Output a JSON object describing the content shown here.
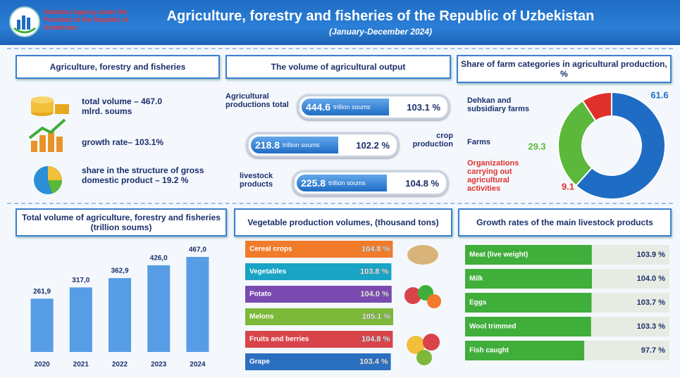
{
  "header": {
    "agency": "Statistics Agency under the President of the Republic of Uzbekistan",
    "title": "Agriculture, forestry and fisheries of the Republic of Uzbekistan",
    "subtitle": "(January-December 2024)"
  },
  "summary": {
    "title": "Agriculture, forestry and fisheries",
    "items": [
      "total volume – 467.0 mlrd. soums",
      "growth rate– 103.1%",
      "share in the structure of gross domestic product – 19.2 %"
    ]
  },
  "output": {
    "title": "The volume of agricultural output",
    "rows": [
      {
        "label": "Agricultural productions total",
        "value": "444.6",
        "unit": "trillion soums",
        "growth": "103.1 %"
      },
      {
        "label": "crop production",
        "value": "218.8",
        "unit": "trillion soums",
        "growth": "102.2 %"
      },
      {
        "label": "livestock products",
        "value": "225.8",
        "unit": "trillion soums",
        "growth": "104.8 %"
      }
    ]
  },
  "chart_data": [
    {
      "type": "pie",
      "title": "Share of farm categories in agricultural production, %",
      "categories": [
        "Dehkan and subsidiary farms",
        "Farms",
        "Organizations carrying out agricultural activities"
      ],
      "values": [
        61.6,
        29.3,
        9.1
      ],
      "colors": [
        "#1f6cc4",
        "#5cb83a",
        "#e0302c"
      ]
    },
    {
      "type": "bar",
      "title": "Total volume of agriculture, forestry and fisheries (trillion soums)",
      "categories": [
        "2020",
        "2021",
        "2022",
        "2023",
        "2024"
      ],
      "values": [
        261.9,
        317.0,
        362.9,
        426.0,
        467.0
      ],
      "value_labels": [
        "261,9",
        "317,0",
        "362,9",
        "426,0",
        "467,0"
      ],
      "color": "#3a8de0"
    },
    {
      "type": "bar",
      "horizontal": true,
      "title": "Vegetable production volumes, (thousand tons)",
      "categories": [
        "Cereal crops",
        "Vegetables",
        "Potato",
        "Melons",
        "Fruits and berries",
        "Grape"
      ],
      "values": [
        104.8,
        103.8,
        104.0,
        105.1,
        104.8,
        103.4
      ],
      "value_labels": [
        "104.8 %",
        "103.8 %",
        "104.0 %",
        "105.1 %",
        "104.8 %",
        "103.4 %"
      ],
      "colors": [
        "#f07b2a",
        "#19a3c4",
        "#7a4ab0",
        "#7cb83a",
        "#d8444a",
        "#2a6fc0"
      ]
    },
    {
      "type": "bar",
      "horizontal": true,
      "title": "Growth rates of the main livestock products",
      "categories": [
        "Meat (live weight)",
        "Milk",
        "Eggs",
        "Wool trimmed",
        "Fish caught"
      ],
      "values": [
        103.9,
        104.0,
        103.7,
        103.3,
        97.7
      ],
      "value_labels": [
        "103.9 %",
        "104.0 %",
        "103.7 %",
        "103.3 %",
        "97.7 %"
      ],
      "color": "#3fae3a"
    }
  ]
}
